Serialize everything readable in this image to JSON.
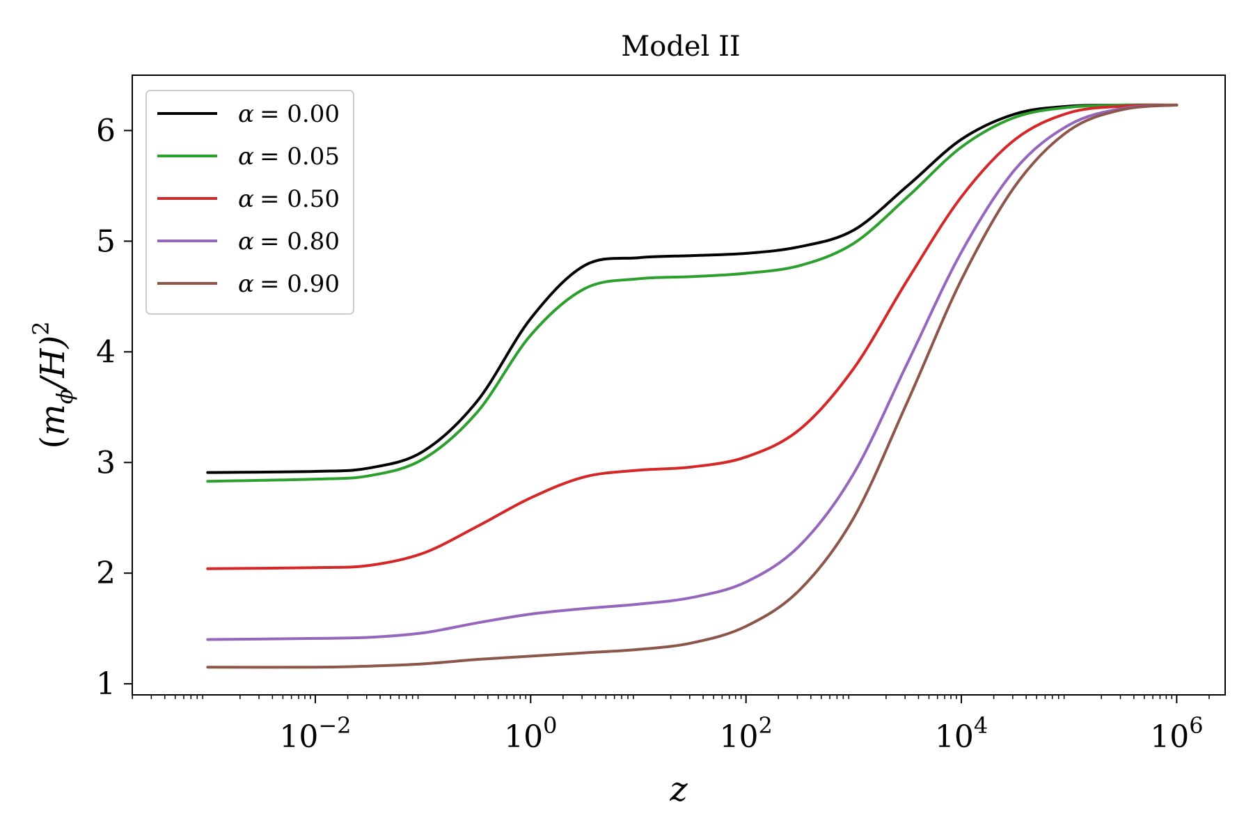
{
  "chart_data": {
    "type": "line",
    "title": "Model II",
    "xlabel": "z",
    "ylabel": "(m_ϕ/H)²",
    "ylabel_parts": {
      "open": "(",
      "m": "m",
      "sub": "ϕ",
      "rest": "/H)",
      "sup": "2"
    },
    "xscale": "log",
    "xlim_log10": [
      -3.7,
      6.45
    ],
    "ylim": [
      0.9,
      6.5
    ],
    "grid": false,
    "legend_position": "upper-left",
    "x_ticks": [
      {
        "exp": -2,
        "base": "10",
        "power": "−2"
      },
      {
        "exp": 0,
        "base": "10",
        "power": "0"
      },
      {
        "exp": 2,
        "base": "10",
        "power": "2"
      },
      {
        "exp": 4,
        "base": "10",
        "power": "4"
      },
      {
        "exp": 6,
        "base": "10",
        "power": "6"
      }
    ],
    "y_ticks": [
      1,
      2,
      3,
      4,
      5,
      6
    ],
    "y_tick_labels": [
      "1",
      "2",
      "3",
      "4",
      "5",
      "6"
    ],
    "x_log10": [
      -3,
      -2,
      -1.5,
      -1,
      -0.5,
      0,
      0.5,
      1,
      1.5,
      2,
      2.5,
      3,
      3.5,
      4,
      4.5,
      5,
      5.5,
      6
    ],
    "series": [
      {
        "name": "α = 0.00",
        "label_symbol": "α",
        "label_value": "= 0.00",
        "color": "#000000",
        "values": [
          2.91,
          2.92,
          2.95,
          3.1,
          3.55,
          4.3,
          4.78,
          4.85,
          4.87,
          4.89,
          4.95,
          5.1,
          5.5,
          5.92,
          6.15,
          6.22,
          6.23,
          6.23
        ]
      },
      {
        "name": "α = 0.05",
        "label_symbol": "α",
        "label_value": "= 0.05",
        "color": "#2ca02c",
        "values": [
          2.83,
          2.85,
          2.88,
          3.03,
          3.45,
          4.15,
          4.57,
          4.66,
          4.68,
          4.71,
          4.78,
          4.98,
          5.4,
          5.85,
          6.12,
          6.21,
          6.23,
          6.23
        ]
      },
      {
        "name": "α = 0.50",
        "label_symbol": "α",
        "label_value": "= 0.50",
        "color": "#d62728",
        "values": [
          2.04,
          2.05,
          2.07,
          2.18,
          2.42,
          2.68,
          2.87,
          2.93,
          2.96,
          3.05,
          3.3,
          3.85,
          4.65,
          5.4,
          5.92,
          6.16,
          6.22,
          6.23
        ]
      },
      {
        "name": "α = 0.80",
        "label_symbol": "α",
        "label_value": "= 0.80",
        "color": "#9467bd",
        "values": [
          1.4,
          1.41,
          1.42,
          1.46,
          1.55,
          1.63,
          1.68,
          1.72,
          1.78,
          1.92,
          2.25,
          2.9,
          3.9,
          4.9,
          5.65,
          6.05,
          6.2,
          6.23
        ]
      },
      {
        "name": "α = 0.90",
        "label_symbol": "α",
        "label_value": "= 0.90",
        "color": "#8c564b",
        "values": [
          1.15,
          1.15,
          1.16,
          1.18,
          1.22,
          1.25,
          1.28,
          1.31,
          1.37,
          1.52,
          1.85,
          2.5,
          3.55,
          4.65,
          5.5,
          6.0,
          6.19,
          6.23
        ]
      }
    ]
  }
}
